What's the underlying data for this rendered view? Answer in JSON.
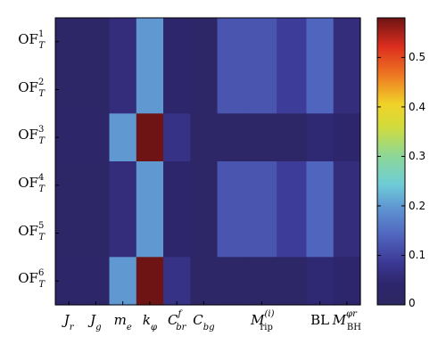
{
  "chart_data": {
    "type": "heatmap",
    "rows": [
      "OF_T^1",
      "OF_T^2",
      "OF_T^3",
      "OF_T^4",
      "OF_T^5",
      "OF_T^6"
    ],
    "row_label_parts": [
      {
        "base": "OF",
        "sup": "1",
        "sub": "T"
      },
      {
        "base": "OF",
        "sup": "2",
        "sub": "T"
      },
      {
        "base": "OF",
        "sup": "3",
        "sub": "T"
      },
      {
        "base": "OF",
        "sup": "4",
        "sub": "T"
      },
      {
        "base": "OF",
        "sup": "5",
        "sub": "T"
      },
      {
        "base": "OF",
        "sup": "6",
        "sub": "T"
      }
    ],
    "columns": [
      "J_r",
      "J_g",
      "m_e",
      "k_φ",
      "C_br^f",
      "C_bg",
      "M_rip^(i)",
      "BL",
      "M_BH^(φr)"
    ],
    "column_label_parts": [
      {
        "base": "J",
        "sub": "r",
        "sup": ""
      },
      {
        "base": "J",
        "sub": "g",
        "sup": ""
      },
      {
        "base": "m",
        "sub": "e",
        "sup": ""
      },
      {
        "base": "k",
        "sub": "φ",
        "sup": ""
      },
      {
        "base": "C",
        "sub": "br",
        "sup": "f"
      },
      {
        "base": "C",
        "sub": "bg",
        "sup": ""
      },
      {
        "base": "M",
        "sub": "rip",
        "sup": "(i)"
      },
      {
        "base": "BL",
        "sub": "",
        "sup": "",
        "plain": true
      },
      {
        "base": "M",
        "sub": "BH",
        "sup": "φr"
      }
    ],
    "column_widths": [
      1,
      1,
      1,
      1,
      1,
      1,
      3.3,
      1,
      1
    ],
    "column_subcells": [
      1,
      1,
      1,
      1,
      1,
      1,
      3,
      1,
      1
    ],
    "values": [
      [
        0.02,
        0.02,
        0.06,
        0.2,
        0.04,
        0.02,
        [
          0.12,
          0.12,
          0.09
        ],
        0.14,
        0.06
      ],
      [
        0.02,
        0.02,
        0.06,
        0.2,
        0.04,
        0.02,
        [
          0.12,
          0.12,
          0.09
        ],
        0.14,
        0.06
      ],
      [
        0.03,
        0.03,
        0.2,
        0.58,
        0.07,
        0.02,
        [
          0.02,
          0.02,
          0.02
        ],
        0.05,
        0.04
      ],
      [
        0.02,
        0.02,
        0.06,
        0.2,
        0.04,
        0.02,
        [
          0.12,
          0.12,
          0.09
        ],
        0.14,
        0.06
      ],
      [
        0.02,
        0.02,
        0.06,
        0.2,
        0.04,
        0.02,
        [
          0.12,
          0.12,
          0.09
        ],
        0.14,
        0.06
      ],
      [
        0.03,
        0.03,
        0.2,
        0.58,
        0.07,
        0.02,
        [
          0.02,
          0.02,
          0.02
        ],
        0.05,
        0.04
      ]
    ],
    "colorbar": {
      "min": 0,
      "max": 0.58,
      "ticks": [
        0,
        0.1,
        0.2,
        0.3,
        0.4,
        0.5
      ],
      "tick_labels": [
        "0",
        "0.1",
        "0.2",
        "0.3",
        "0.4",
        "0.5"
      ],
      "colormap": "jet-like"
    }
  }
}
